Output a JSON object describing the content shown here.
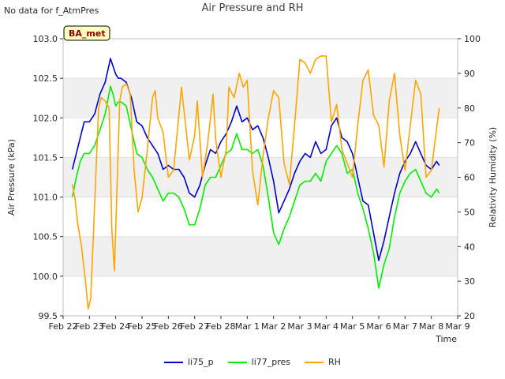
{
  "header": {
    "nodata": "No data for f_AtmPres"
  },
  "chart_data": {
    "type": "line",
    "title": "Air Pressure and RH",
    "xlabel": "Time",
    "ylabel": "Air Pressure (kPa)",
    "y2label": "Relativity Humidity (%)",
    "badge": "BA_met",
    "xticks": [
      "Feb 22",
      "Feb 23",
      "Feb 24",
      "Feb 25",
      "Feb 26",
      "Feb 27",
      "Feb 28",
      "Mar 1",
      "Mar 2",
      "Mar 3",
      "Mar 4",
      "Mar 5",
      "Mar 6",
      "Mar 7",
      "Mar 8",
      "Mar 9"
    ],
    "xlim": [
      0,
      15
    ],
    "ylim": [
      99.5,
      103.0
    ],
    "yticks": [
      "99.5",
      "100.0",
      "100.5",
      "101.0",
      "101.5",
      "102.0",
      "102.5",
      "103.0"
    ],
    "y2lim": [
      20,
      100
    ],
    "y2ticks": [
      "20",
      "30",
      "40",
      "50",
      "60",
      "70",
      "80",
      "90",
      "100"
    ],
    "grid": true,
    "legend_position": "bottom-center",
    "series": [
      {
        "name": "li75_p",
        "color": "#0000cc",
        "axis": "left",
        "x": [
          0.35,
          0.5,
          0.65,
          0.8,
          1.0,
          1.2,
          1.4,
          1.6,
          1.8,
          1.9,
          2.0,
          2.1,
          2.2,
          2.4,
          2.6,
          2.8,
          3.0,
          3.2,
          3.4,
          3.6,
          3.8,
          4.0,
          4.2,
          4.4,
          4.6,
          4.8,
          5.0,
          5.2,
          5.4,
          5.6,
          5.8,
          6.0,
          6.2,
          6.4,
          6.6,
          6.8,
          7.0,
          7.2,
          7.4,
          7.6,
          7.8,
          8.0,
          8.2,
          8.4,
          8.6,
          8.8,
          9.0,
          9.2,
          9.4,
          9.6,
          9.8,
          10.0,
          10.2,
          10.4,
          10.6,
          10.8,
          11.0,
          11.2,
          11.4,
          11.6,
          11.8,
          12.0,
          12.2,
          12.4,
          12.6,
          12.8,
          13.0,
          13.2,
          13.4,
          13.6,
          13.8,
          14.0,
          14.2,
          14.3
        ],
        "values": [
          101.35,
          101.55,
          101.75,
          101.95,
          101.95,
          102.05,
          102.3,
          102.45,
          102.75,
          102.65,
          102.55,
          102.5,
          102.5,
          102.45,
          102.25,
          101.95,
          101.9,
          101.75,
          101.65,
          101.55,
          101.35,
          101.4,
          101.35,
          101.35,
          101.25,
          101.05,
          101.0,
          101.15,
          101.4,
          101.6,
          101.55,
          101.7,
          101.8,
          101.95,
          102.15,
          101.95,
          102.0,
          101.85,
          101.9,
          101.75,
          101.5,
          101.2,
          100.8,
          100.95,
          101.1,
          101.3,
          101.45,
          101.55,
          101.5,
          101.7,
          101.55,
          101.6,
          101.9,
          102.0,
          101.75,
          101.7,
          101.55,
          101.25,
          100.95,
          100.9,
          100.55,
          100.2,
          100.45,
          100.75,
          101.05,
          101.3,
          101.45,
          101.55,
          101.7,
          101.55,
          101.4,
          101.35,
          101.45,
          101.4
        ]
      },
      {
        "name": "li77_pres",
        "color": "#00ee00",
        "axis": "left",
        "x": [
          0.35,
          0.5,
          0.65,
          0.8,
          1.0,
          1.2,
          1.4,
          1.6,
          1.8,
          1.9,
          2.0,
          2.1,
          2.2,
          2.4,
          2.6,
          2.8,
          3.0,
          3.2,
          3.4,
          3.6,
          3.8,
          4.0,
          4.2,
          4.4,
          4.6,
          4.8,
          5.0,
          5.2,
          5.4,
          5.6,
          5.8,
          6.0,
          6.2,
          6.4,
          6.6,
          6.8,
          7.0,
          7.2,
          7.4,
          7.6,
          7.8,
          8.0,
          8.2,
          8.4,
          8.6,
          8.8,
          9.0,
          9.2,
          9.4,
          9.6,
          9.8,
          10.0,
          10.2,
          10.4,
          10.6,
          10.8,
          11.0,
          11.2,
          11.4,
          11.6,
          11.8,
          12.0,
          12.2,
          12.4,
          12.6,
          12.8,
          13.0,
          13.2,
          13.4,
          13.6,
          13.8,
          14.0,
          14.2,
          14.3
        ],
        "values": [
          101.0,
          101.25,
          101.45,
          101.55,
          101.55,
          101.65,
          101.85,
          102.05,
          102.4,
          102.3,
          102.15,
          102.2,
          102.2,
          102.15,
          101.85,
          101.55,
          101.5,
          101.35,
          101.25,
          101.1,
          100.95,
          101.05,
          101.05,
          101.0,
          100.85,
          100.65,
          100.65,
          100.85,
          101.15,
          101.25,
          101.25,
          101.4,
          101.55,
          101.6,
          101.8,
          101.6,
          101.6,
          101.55,
          101.6,
          101.4,
          101.0,
          100.55,
          100.4,
          100.6,
          100.75,
          100.95,
          101.15,
          101.2,
          101.2,
          101.3,
          101.2,
          101.45,
          101.55,
          101.65,
          101.55,
          101.3,
          101.35,
          101.05,
          100.85,
          100.6,
          100.3,
          99.85,
          100.15,
          100.35,
          100.75,
          101.05,
          101.2,
          101.3,
          101.35,
          101.2,
          101.05,
          101.0,
          101.1,
          101.05
        ]
      },
      {
        "name": "RH",
        "color": "#ffa500",
        "axis": "right",
        "x": [
          0.35,
          0.45,
          0.55,
          0.7,
          0.85,
          0.95,
          1.05,
          1.15,
          1.25,
          1.35,
          1.45,
          1.6,
          1.75,
          1.85,
          1.95,
          2.05,
          2.15,
          2.25,
          2.4,
          2.55,
          2.7,
          2.85,
          3.0,
          3.2,
          3.4,
          3.5,
          3.6,
          3.8,
          4.0,
          4.2,
          4.4,
          4.5,
          4.6,
          4.8,
          5.0,
          5.1,
          5.3,
          5.5,
          5.7,
          5.8,
          6.0,
          6.2,
          6.3,
          6.5,
          6.7,
          6.85,
          7.0,
          7.2,
          7.4,
          7.6,
          7.8,
          8.0,
          8.2,
          8.4,
          8.6,
          8.8,
          9.0,
          9.2,
          9.4,
          9.6,
          9.8,
          10.0,
          10.2,
          10.4,
          10.6,
          10.8,
          11.0,
          11.2,
          11.4,
          11.6,
          11.8,
          12.0,
          12.2,
          12.4,
          12.6,
          12.8,
          13.0,
          13.2,
          13.4,
          13.6,
          13.8,
          14.0,
          14.2,
          14.3
        ],
        "values": [
          58,
          54,
          47,
          40,
          30,
          22,
          25,
          43,
          62,
          80,
          83,
          82,
          80,
          45,
          33,
          57,
          82,
          86,
          87,
          84,
          62,
          50,
          54,
          68,
          83,
          85,
          77,
          73,
          60,
          62,
          78,
          86,
          79,
          65,
          72,
          82,
          60,
          70,
          84,
          71,
          60,
          68,
          86,
          83,
          90,
          86,
          88,
          62,
          52,
          66,
          77,
          85,
          83,
          64,
          58,
          75,
          94,
          93,
          90,
          94,
          95,
          95,
          76,
          81,
          68,
          64,
          60,
          75,
          88,
          91,
          78,
          75,
          63,
          82,
          90,
          72,
          62,
          75,
          88,
          84,
          60,
          62,
          74,
          80
        ]
      }
    ]
  }
}
